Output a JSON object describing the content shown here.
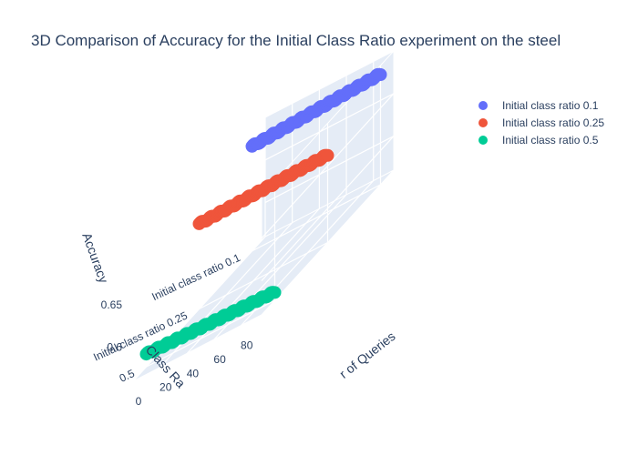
{
  "chart_data": {
    "type": "scatter3d",
    "title": "3D Comparison of Accuracy for the Initial Class Ratio experiment on the steel",
    "axes": {
      "x": {
        "label": "Number of Queries",
        "visible_label": "r of Queries",
        "ticks": [
          "0",
          "20",
          "40",
          "60",
          "80"
        ],
        "range": [
          0,
          95
        ]
      },
      "y": {
        "label": "Class Ratio",
        "visible_label": "Class Ra",
        "ticks": [
          "Initial class ratio 0.1",
          "Initial class ratio 0.25",
          "0.5"
        ],
        "tick_extra": "Initial class ratio 0.5"
      },
      "z": {
        "label": "Accuracy",
        "ticks": [
          "0.6",
          "0.65"
        ],
        "range": [
          0.56,
          0.7
        ]
      }
    },
    "series": [
      {
        "name": "Initial class ratio 0.1",
        "color": "#636efa",
        "y_index": 0,
        "queries": [
          0,
          95
        ],
        "accuracy_start": 0.683,
        "accuracy_end": 0.69
      },
      {
        "name": "Initial class ratio 0.25",
        "color": "#ef553b",
        "y_index": 1,
        "queries": [
          0,
          95
        ],
        "accuracy_start": 0.66,
        "accuracy_end": 0.663
      },
      {
        "name": "Initial class ratio 0.5",
        "color": "#00cc96",
        "y_index": 2,
        "queries": [
          0,
          95
        ],
        "accuracy_start": 0.575,
        "accuracy_end": 0.57
      }
    ],
    "legend": "top-right",
    "grid": true
  }
}
